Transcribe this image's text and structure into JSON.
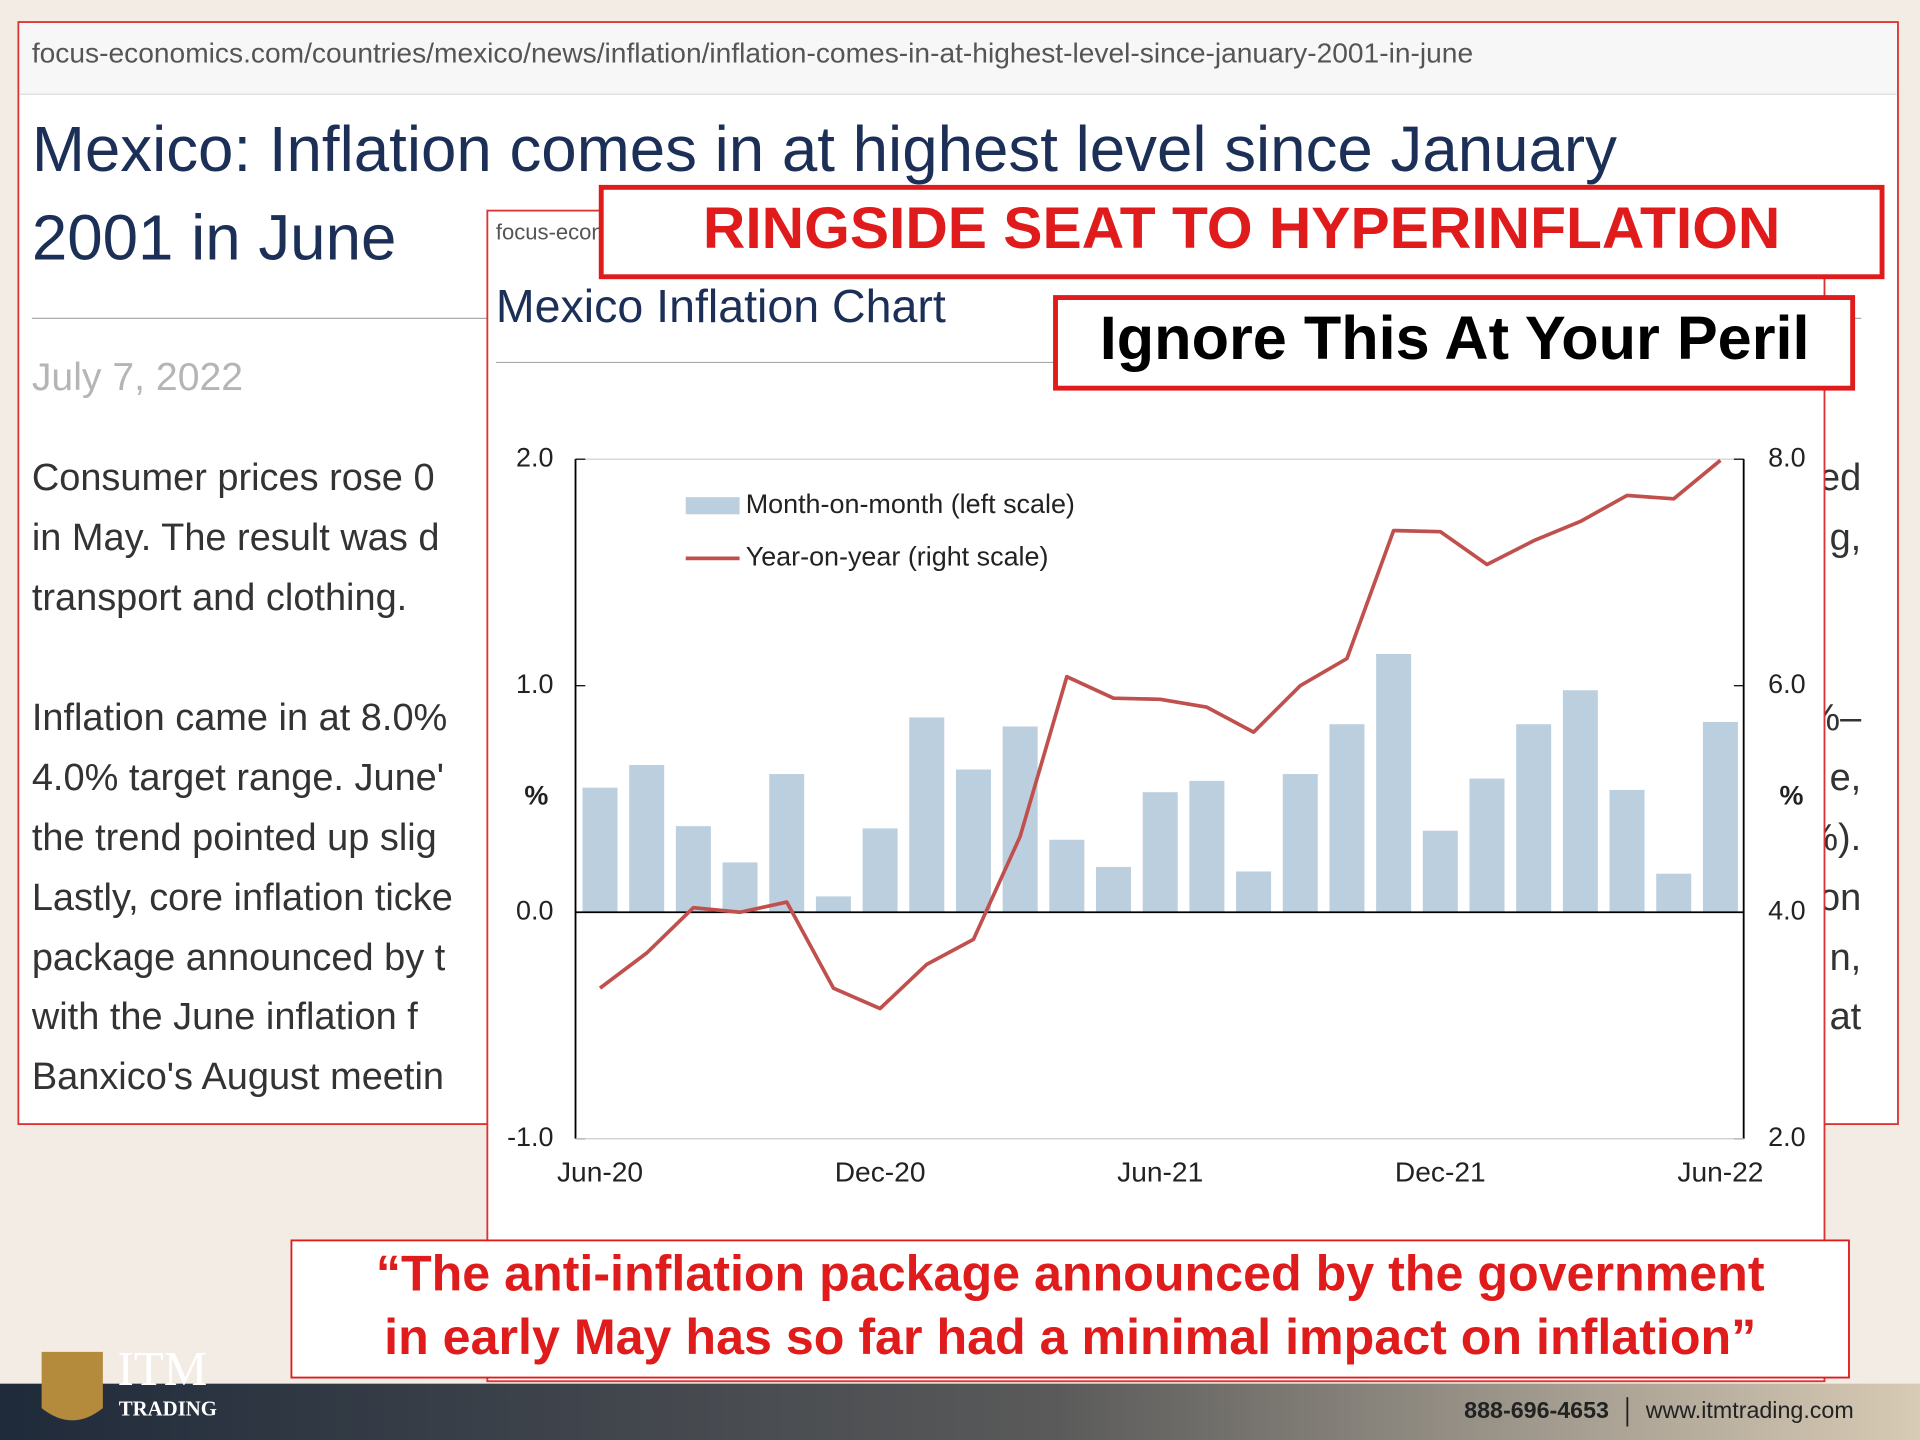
{
  "article": {
    "url": "focus-economics.com/countries/mexico/news/inflation/inflation-comes-in-at-highest-level-since-january-2001-in-june",
    "title_lines": [
      "Mexico: Inflation comes in at highest level since January",
      "2001 in June"
    ],
    "date": "July 7, 2022",
    "body_left": [
      "Consumer prices rose 0",
      "in May. The result was d",
      "transport and clothing.",
      "Inflation came in at 8.0%",
      "4.0% target range. June'",
      "the trend pointed up slig",
      "Lastly, core inflation ticke",
      "package announced by t",
      "with the June inflation f",
      "Banxico's August meetin"
    ],
    "body_right": [
      "ed",
      "g,",
      "%–",
      "e,",
      "%).",
      "on",
      "n,",
      "at"
    ]
  },
  "chart_panel": {
    "url": "focus-econ"
  },
  "overlays": {
    "headline": "RINGSIDE SEAT TO HYPERINFLATION",
    "warning": "Ignore This At Your Peril",
    "quote_lines": [
      "“The anti-inflation package announced by the government",
      "in early May has so far had a minimal impact on inflation”"
    ]
  },
  "footer": {
    "logo_top": "ITM",
    "logo_bottom": "TRADING",
    "phone": "888-696-4653",
    "website": "www.itmtrading.com"
  },
  "chart_data": {
    "type": "bar_line",
    "title": "Mexico Inflation Chart",
    "y_label": "%",
    "y2_label": "%",
    "categories": [
      "Jun-20",
      null,
      null,
      null,
      null,
      null,
      "Dec-20",
      null,
      null,
      null,
      null,
      null,
      "Jun-21",
      null,
      null,
      null,
      null,
      null,
      "Dec-21",
      null,
      null,
      null,
      null,
      null,
      "Jun-22"
    ],
    "series": [
      {
        "name": "Month-on-month (left scale)",
        "color": "#bccfdf",
        "type": "bar",
        "values": [
          0.55,
          0.65,
          0.38,
          0.22,
          0.61,
          0.07,
          0.37,
          0.86,
          0.63,
          0.82,
          0.32,
          0.2,
          0.53,
          0.58,
          0.18,
          0.61,
          0.83,
          1.14,
          0.36,
          0.59,
          0.83,
          0.98,
          0.54,
          0.17,
          0.84
        ]
      },
      {
        "name": "Year-on-year (right scale)",
        "color": "#c0504d",
        "type": "line",
        "axis": "y2",
        "values": [
          3.33,
          3.64,
          4.04,
          4.0,
          4.09,
          3.33,
          3.15,
          3.54,
          3.76,
          4.67,
          6.08,
          5.89,
          5.88,
          5.81,
          5.59,
          6.0,
          6.24,
          7.37,
          7.36,
          7.07,
          7.28,
          7.45,
          7.68,
          7.65,
          7.99
        ]
      }
    ],
    "ylim": [
      -1,
      2
    ],
    "yticks": [
      {
        "value": -1,
        "label": "-1.0"
      },
      {
        "value": 0,
        "label": "0.0"
      },
      {
        "value": 1,
        "label": "1.0"
      },
      {
        "value": 2,
        "label": "2.0"
      }
    ],
    "y2lim": [
      2,
      8
    ],
    "y2ticks": [
      {
        "value": 2,
        "label": "2.0"
      },
      {
        "value": 4,
        "label": "4.0"
      },
      {
        "value": 6,
        "label": "6.0"
      },
      {
        "value": 8,
        "label": "8.0"
      }
    ],
    "legend": "upper left"
  }
}
